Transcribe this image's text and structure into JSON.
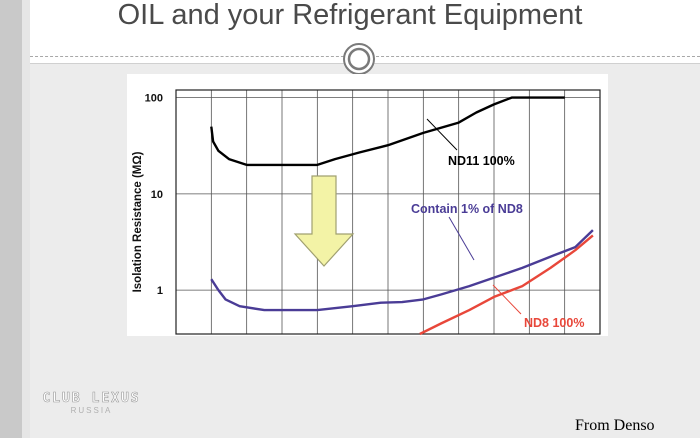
{
  "slide": {
    "title": "OIL and your Refrigerant Equipment",
    "source": "From Denso",
    "watermark_main": "CLUB LEXUS",
    "watermark_sub": "RUSSIA"
  },
  "colors": {
    "nd11": "#000000",
    "contain_nd8": "#4a3c96",
    "nd8": "#e8473a",
    "arrow_fill": "#f3f3a6",
    "arrow_stroke": "#a0a070"
  },
  "icons": [
    "circle-icon",
    "down-arrow-icon"
  ],
  "chart_data": {
    "type": "line",
    "ylabel": "Isolation Resistance (MΩ)",
    "xlabel": "",
    "yscale": "log",
    "ylim": [
      0.35,
      120
    ],
    "y_ticks": [
      {
        "value": 100,
        "label": "100"
      },
      {
        "value": 10,
        "label": "10"
      },
      {
        "value": 1,
        "label": "1"
      }
    ],
    "x_range": [
      0,
      12
    ],
    "series": [
      {
        "name": "ND11 100%",
        "color": "#000000",
        "points": [
          [
            1.0,
            50
          ],
          [
            1.05,
            35
          ],
          [
            1.2,
            28
          ],
          [
            1.5,
            23
          ],
          [
            2.0,
            20
          ],
          [
            3.0,
            20
          ],
          [
            4.0,
            20
          ],
          [
            4.5,
            23
          ],
          [
            5.2,
            27
          ],
          [
            6.0,
            32
          ],
          [
            7.0,
            43
          ],
          [
            8.0,
            55
          ],
          [
            8.5,
            70
          ],
          [
            9.0,
            85
          ],
          [
            9.5,
            100
          ],
          [
            11.0,
            100
          ]
        ]
      },
      {
        "name": "Contain 1% of ND8",
        "color": "#4a3c96",
        "points": [
          [
            1.0,
            1.3
          ],
          [
            1.2,
            1.0
          ],
          [
            1.4,
            0.8
          ],
          [
            1.8,
            0.68
          ],
          [
            2.5,
            0.62
          ],
          [
            3.0,
            0.62
          ],
          [
            4.0,
            0.62
          ],
          [
            5.0,
            0.68
          ],
          [
            5.8,
            0.74
          ],
          [
            6.4,
            0.75
          ],
          [
            7.0,
            0.8
          ],
          [
            7.5,
            0.9
          ],
          [
            8.3,
            1.1
          ],
          [
            9.0,
            1.35
          ],
          [
            9.8,
            1.7
          ],
          [
            10.7,
            2.3
          ],
          [
            11.3,
            2.8
          ],
          [
            11.8,
            4.2
          ]
        ]
      },
      {
        "name": "ND8 100%",
        "color": "#e8473a",
        "points": [
          [
            6.9,
            0.35
          ],
          [
            7.5,
            0.45
          ],
          [
            8.3,
            0.62
          ],
          [
            9.0,
            0.85
          ],
          [
            9.8,
            1.1
          ],
          [
            10.6,
            1.7
          ],
          [
            11.3,
            2.6
          ],
          [
            11.8,
            3.7
          ]
        ]
      }
    ],
    "annotations": [
      {
        "text": "ND11  100%",
        "series": "ND11 100%"
      },
      {
        "text": "Contain 1% of ND8",
        "series": "Contain 1% of ND8"
      },
      {
        "text": "ND8  100%",
        "series": "ND8 100%"
      }
    ],
    "grid": true
  }
}
